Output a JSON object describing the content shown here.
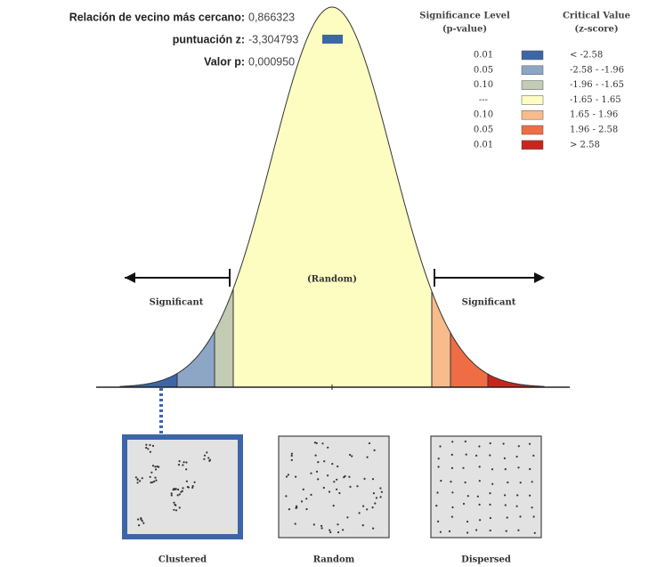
{
  "stats": [
    {
      "label": "Relación de vecino más cercano:",
      "value": "0,866323"
    },
    {
      "label": "puntuación z:",
      "value": "-3,304793"
    },
    {
      "label": "Valor p:",
      "value": "0,000950"
    }
  ],
  "legend": {
    "header_p": [
      "Significance Level",
      "(p-value)"
    ],
    "header_z": [
      "Critical Value",
      "(z-score)"
    ],
    "rows": [
      {
        "p": "0.01",
        "z": "< -2.58",
        "color": "#3d66a8"
      },
      {
        "p": "0.05",
        "z": "-2.58 - -1.96",
        "color": "#8ea6c6"
      },
      {
        "p": "0.10",
        "z": "-1.96 - -1.65",
        "color": "#c2cbb3"
      },
      {
        "p": "---",
        "z": "-1.65 - 1.65",
        "color": "#fdfdc2"
      },
      {
        "p": "0.10",
        "z": "1.65 - 1.96",
        "color": "#f8bb8c"
      },
      {
        "p": "0.05",
        "z": "1.96 - 2.58",
        "color": "#ee6d45"
      },
      {
        "p": "0.01",
        "z": "> 2.58",
        "color": "#c9251d"
      }
    ]
  },
  "curve_labels": {
    "left": "Significant",
    "center": "(Random)",
    "right": "Significant"
  },
  "panels": [
    "Clustered",
    "Random",
    "Dispersed"
  ]
}
